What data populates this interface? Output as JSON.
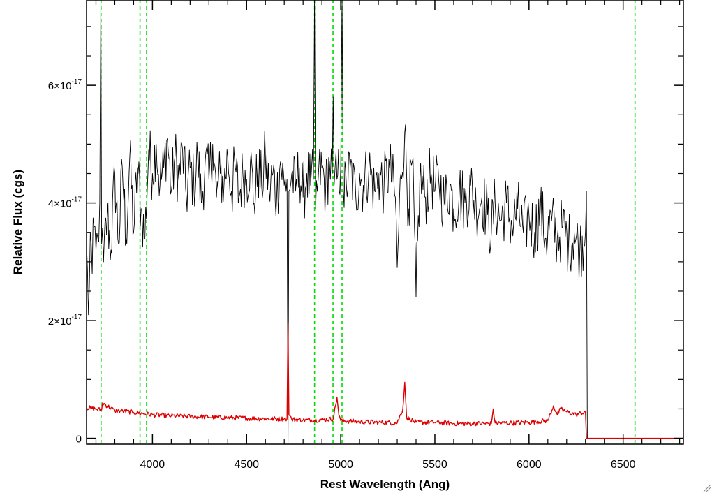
{
  "chart_data": {
    "type": "line",
    "title": "",
    "xlabel": "Rest Wavelength (Ang)",
    "ylabel": "Relative Flux (cgs)",
    "xlim": [
      3650,
      6820
    ],
    "ylim": [
      -1e-18,
      7.45e-17
    ],
    "grid": false,
    "x_ticks": [
      {
        "value": 4000,
        "label": "4000"
      },
      {
        "value": 4500,
        "label": "4500"
      },
      {
        "value": 5000,
        "label": "5000"
      },
      {
        "value": 5500,
        "label": "5500"
      },
      {
        "value": 6000,
        "label": "6000"
      },
      {
        "value": 6500,
        "label": "6500"
      }
    ],
    "y_ticks": [
      {
        "value": 0,
        "mantissa": "0",
        "exponent": ""
      },
      {
        "value": 2e-17,
        "mantissa": "2×10",
        "exponent": "-17"
      },
      {
        "value": 4e-17,
        "mantissa": "4×10",
        "exponent": "-17"
      },
      {
        "value": 6e-17,
        "mantissa": "6×10",
        "exponent": "-17"
      }
    ],
    "vertical_lines": {
      "color": "#00dd00",
      "style": "dashed",
      "x": [
        3727,
        3934,
        3969,
        4861,
        4959,
        5007,
        6563
      ]
    },
    "series": [
      {
        "color": "#000000",
        "x": [
          3650,
          3660,
          3670,
          3680,
          3690,
          3700,
          3710,
          3720,
          3726,
          3730,
          3740,
          3760,
          3780,
          3800,
          3820,
          3840,
          3860,
          3880,
          3900,
          3920,
          3940,
          3960,
          3980,
          4000,
          4020,
          4040,
          4060,
          4080,
          4100,
          4120,
          4140,
          4160,
          4180,
          4200,
          4220,
          4240,
          4260,
          4280,
          4300,
          4320,
          4340,
          4360,
          4380,
          4400,
          4420,
          4440,
          4460,
          4480,
          4500,
          4520,
          4540,
          4560,
          4580,
          4600,
          4620,
          4640,
          4660,
          4680,
          4700,
          4715,
          4720,
          4725,
          4740,
          4760,
          4780,
          4800,
          4820,
          4840,
          4855,
          4861,
          4867,
          4880,
          4900,
          4920,
          4940,
          4955,
          4960,
          4965,
          4980,
          5000,
          5007,
          5014,
          5030,
          5050,
          5080,
          5100,
          5120,
          5150,
          5180,
          5200,
          5230,
          5260,
          5290,
          5300,
          5320,
          5340,
          5360,
          5380,
          5400,
          5420,
          5450,
          5480,
          5500,
          5520,
          5550,
          5580,
          5600,
          5630,
          5660,
          5690,
          5720,
          5750,
          5780,
          5800,
          5820,
          5850,
          5880,
          5910,
          5940,
          5970,
          6000,
          6030,
          6060,
          6090,
          6120,
          6150,
          6180,
          6210,
          6240,
          6270,
          6300,
          6305,
          6310,
          6820
        ],
        "y": [
          3.3e-17,
          2.1e-17,
          3.5e-17,
          2.8e-17,
          3.6e-17,
          3.2e-17,
          3.4e-17,
          4e-17,
          8.5e-17,
          3.3e-17,
          3e-17,
          3.8e-17,
          3.2e-17,
          4.5e-17,
          3.3e-17,
          4.6e-17,
          3.4e-17,
          4.8e-17,
          3.5e-17,
          4.6e-17,
          3.9e-17,
          3.4e-17,
          4.9e-17,
          4.5e-17,
          5e-17,
          4.3e-17,
          4.6e-17,
          5.1e-17,
          4.2e-17,
          4.8e-17,
          4.4e-17,
          4.9e-17,
          4.1e-17,
          4.6e-17,
          4.3e-17,
          4.8e-17,
          4e-17,
          4.7e-17,
          4.4e-17,
          5e-17,
          4.1e-17,
          4.5e-17,
          4.3e-17,
          4.8e-17,
          4.2e-17,
          4.6e-17,
          4.1e-17,
          4.5e-17,
          4.4e-17,
          4.7e-17,
          4e-17,
          4.6e-17,
          4.3e-17,
          4.8e-17,
          4.2e-17,
          4.5e-17,
          4.1e-17,
          4.7e-17,
          4.3e-17,
          4.4e-17,
          -1e-18,
          4.2e-17,
          4.5e-17,
          4.2e-17,
          4.6e-17,
          4.1e-17,
          4.5e-17,
          4.3e-17,
          4.4e-17,
          9e-17,
          3.9e-17,
          4.4e-17,
          4.6e-17,
          4.2e-17,
          4.7e-17,
          4.5e-17,
          5.8e-17,
          4.3e-17,
          4.4e-17,
          4.6e-17,
          8.5e-17,
          4.2e-17,
          4.3e-17,
          4.6e-17,
          4.1e-17,
          4.5e-17,
          4.3e-17,
          4.6e-17,
          4.2e-17,
          4.5e-17,
          4.3e-17,
          4.6e-17,
          4.1e-17,
          2.9e-17,
          4.5e-17,
          5.2e-17,
          3.9e-17,
          4.7e-17,
          2.4e-17,
          4.4e-17,
          4.1e-17,
          4.5e-17,
          4.2e-17,
          4.4e-17,
          4e-17,
          4.3e-17,
          3.9e-17,
          4.2e-17,
          4e-17,
          4.3e-17,
          3.9e-17,
          4.1e-17,
          3.8e-17,
          3.5e-17,
          4e-17,
          3.7e-17,
          4e-17,
          3.6e-17,
          3.9e-17,
          3.5e-17,
          3.8e-17,
          3.5e-17,
          3.9e-17,
          3.4e-17,
          3.7e-17,
          3.4e-17,
          3.6e-17,
          3.3e-17,
          3.5e-17,
          3.2e-17,
          3.5e-17,
          4.2e-17,
          0,
          0
        ]
      },
      {
        "color": "#dd0000",
        "x": [
          3650,
          3700,
          3730,
          3735,
          3800,
          3850,
          3900,
          3950,
          4000,
          4100,
          4200,
          4300,
          4400,
          4500,
          4600,
          4700,
          4715,
          4720,
          4725,
          4740,
          4800,
          4900,
          4960,
          4980,
          4990,
          5000,
          5050,
          5100,
          5200,
          5300,
          5330,
          5340,
          5350,
          5400,
          5500,
          5600,
          5700,
          5800,
          5810,
          5820,
          5900,
          6000,
          6100,
          6130,
          6150,
          6170,
          6200,
          6250,
          6300,
          6305,
          6310,
          6820
        ],
        "y": [
          5.2e-18,
          5e-18,
          4.8e-18,
          6e-18,
          4.7e-18,
          4.6e-18,
          4.4e-18,
          4.2e-18,
          4e-18,
          3.8e-18,
          3.7e-18,
          3.6e-18,
          3.5e-18,
          3.4e-18,
          3.3e-18,
          3.3e-18,
          3.3e-18,
          1.95e-17,
          4e-18,
          3.2e-18,
          3.1e-18,
          3.1e-18,
          3.3e-18,
          7e-18,
          4e-18,
          3e-18,
          2.9e-18,
          2.8e-18,
          2.7e-18,
          2.6e-18,
          5e-18,
          9.5e-18,
          3.5e-18,
          2.7e-18,
          2.7e-18,
          2.5e-18,
          2.5e-18,
          2.5e-18,
          5e-18,
          2.6e-18,
          2.6e-18,
          2.7e-18,
          3e-18,
          5.5e-18,
          4e-18,
          5e-18,
          4.5e-18,
          4e-18,
          4.5e-18,
          0,
          0,
          0
        ]
      }
    ]
  }
}
